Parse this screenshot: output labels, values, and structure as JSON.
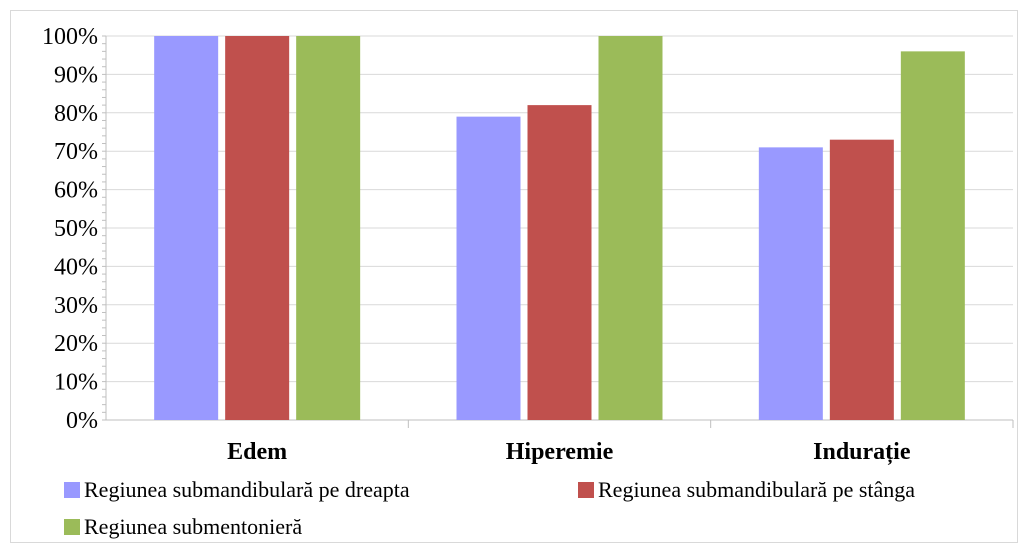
{
  "chart_data": {
    "type": "bar",
    "title": "",
    "xlabel": "",
    "ylabel": "",
    "categories": [
      "Edem",
      "Hiperemie",
      "Indurație"
    ],
    "series": [
      {
        "name": "Regiunea submandibulară pe dreapta",
        "color": "#9999ff",
        "values": [
          100,
          79,
          71
        ]
      },
      {
        "name": "Regiunea submandibulară pe stânga",
        "color": "#c0504d",
        "values": [
          100,
          82,
          73
        ]
      },
      {
        "name": "Regiunea submentonieră",
        "color": "#9bbb59",
        "values": [
          100,
          100,
          96
        ]
      }
    ],
    "ylim": [
      0,
      100
    ],
    "yticks": [
      "0%",
      "10%",
      "20%",
      "30%",
      "40%",
      "50%",
      "60%",
      "70%",
      "80%",
      "90%",
      "100%"
    ],
    "grid": true,
    "legend_position": "bottom"
  }
}
